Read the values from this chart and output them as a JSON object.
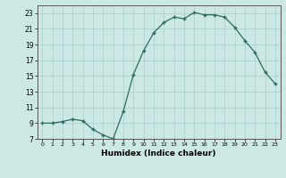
{
  "x": [
    0,
    1,
    2,
    3,
    4,
    5,
    6,
    7,
    8,
    9,
    10,
    11,
    12,
    13,
    14,
    15,
    16,
    17,
    18,
    19,
    20,
    21,
    22,
    23
  ],
  "y": [
    9.0,
    9.0,
    9.2,
    9.5,
    9.3,
    8.2,
    7.5,
    7.0,
    10.5,
    15.2,
    18.2,
    20.5,
    21.8,
    22.5,
    22.3,
    23.1,
    22.8,
    22.8,
    22.5,
    21.2,
    19.5,
    18.0,
    15.5,
    14.0
  ],
  "xlabel": "Humidex (Indice chaleur)",
  "xlim": [
    -0.5,
    23.5
  ],
  "ylim": [
    7,
    24
  ],
  "yticks": [
    7,
    9,
    11,
    13,
    15,
    17,
    19,
    21,
    23
  ],
  "xticks": [
    0,
    1,
    2,
    3,
    4,
    5,
    6,
    7,
    8,
    9,
    10,
    11,
    12,
    13,
    14,
    15,
    16,
    17,
    18,
    19,
    20,
    21,
    22,
    23
  ],
  "line_color": "#2e6b5e",
  "marker": "+",
  "markersize": 3.5,
  "markeredgewidth": 1.0,
  "linewidth": 0.9,
  "bg_color": "#cce8e5",
  "grid_color": "#aacfcc"
}
